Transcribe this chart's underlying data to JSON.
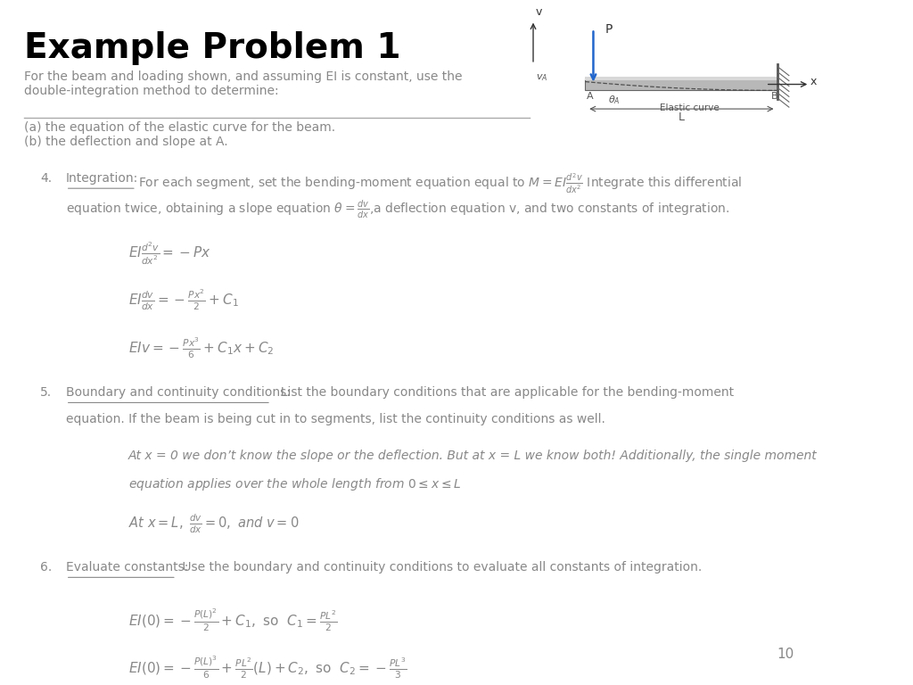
{
  "title": "Example Problem 1",
  "subtitle": "For the beam and loading shown, and assuming EI is constant, use the\ndouble-integration method to determine:",
  "parts": "(a) the equation of the elastic curve for the beam.\n(b) the deflection and slope at A.",
  "bg_color": "#ffffff",
  "text_color": "#000000",
  "gray_color": "#555555",
  "light_gray": "#888888",
  "page_number": "10"
}
